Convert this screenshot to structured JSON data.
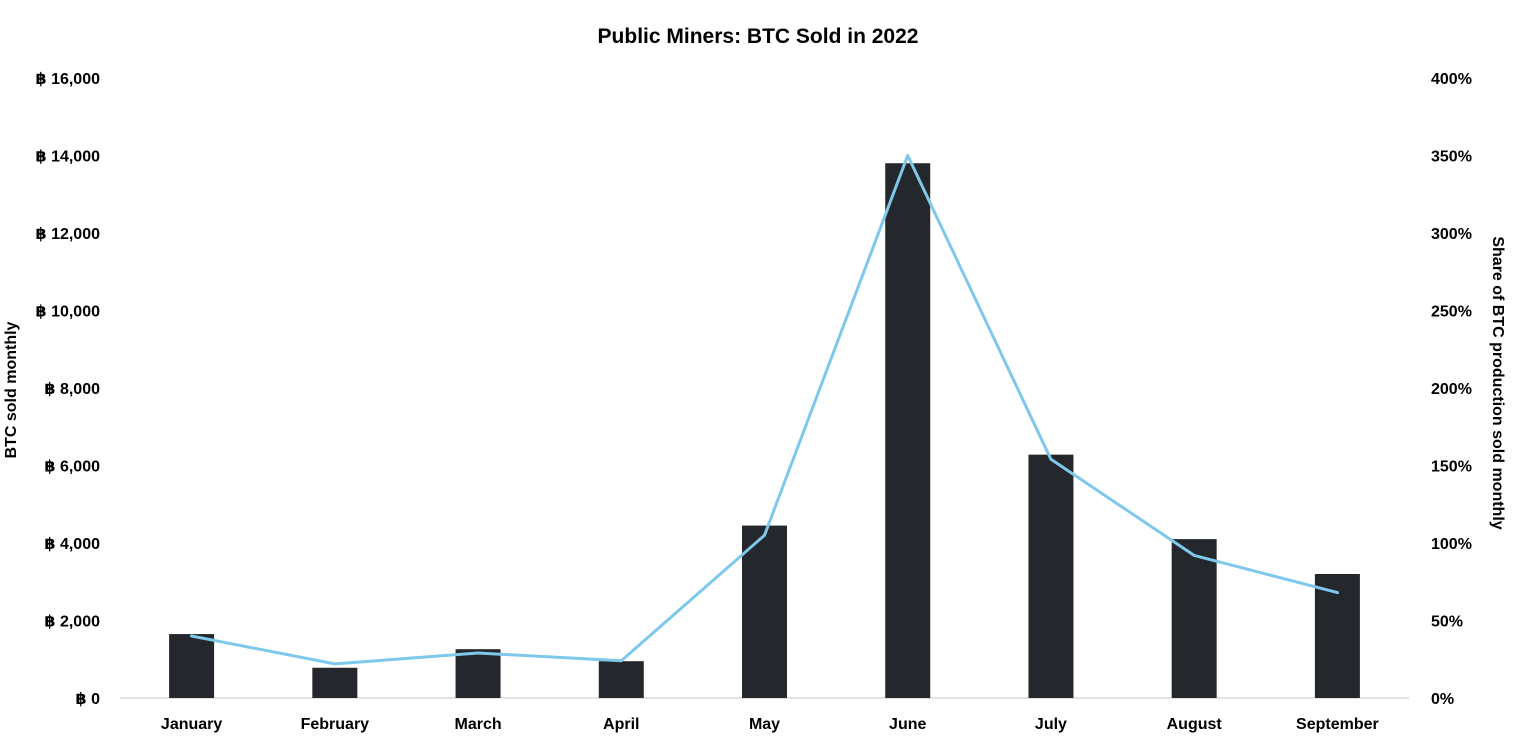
{
  "chart_data": {
    "type": "bar",
    "title": "Public Miners: BTC Sold in 2022",
    "xlabel": "",
    "ylabel": "BTC sold monthly",
    "y2label": "Share of BTC production sold monthly",
    "categories": [
      "January",
      "February",
      "March",
      "April",
      "May",
      "June",
      "July",
      "August",
      "September"
    ],
    "series": [
      {
        "type": "bar",
        "axis": "left",
        "color": "#24272b",
        "values": [
          1650,
          780,
          1260,
          950,
          4450,
          13800,
          6280,
          4100,
          3200
        ]
      },
      {
        "type": "line",
        "axis": "right",
        "color": "#7ec8ec",
        "values": [
          40,
          22,
          29,
          24,
          105,
          350,
          154,
          92,
          68
        ]
      }
    ],
    "ylim": [
      0,
      16000
    ],
    "y2lim": [
      0,
      400
    ],
    "yticks": [
      "฿ 0",
      "฿ 2,000",
      "฿ 4,000",
      "฿ 6,000",
      "฿ 8,000",
      "฿ 10,000",
      "฿ 12,000",
      "฿ 14,000",
      "฿ 16,000"
    ],
    "y2ticks": [
      "0%",
      "50%",
      "100%",
      "150%",
      "200%",
      "250%",
      "300%",
      "350%",
      "400%"
    ],
    "grid": false,
    "legend": "none"
  }
}
